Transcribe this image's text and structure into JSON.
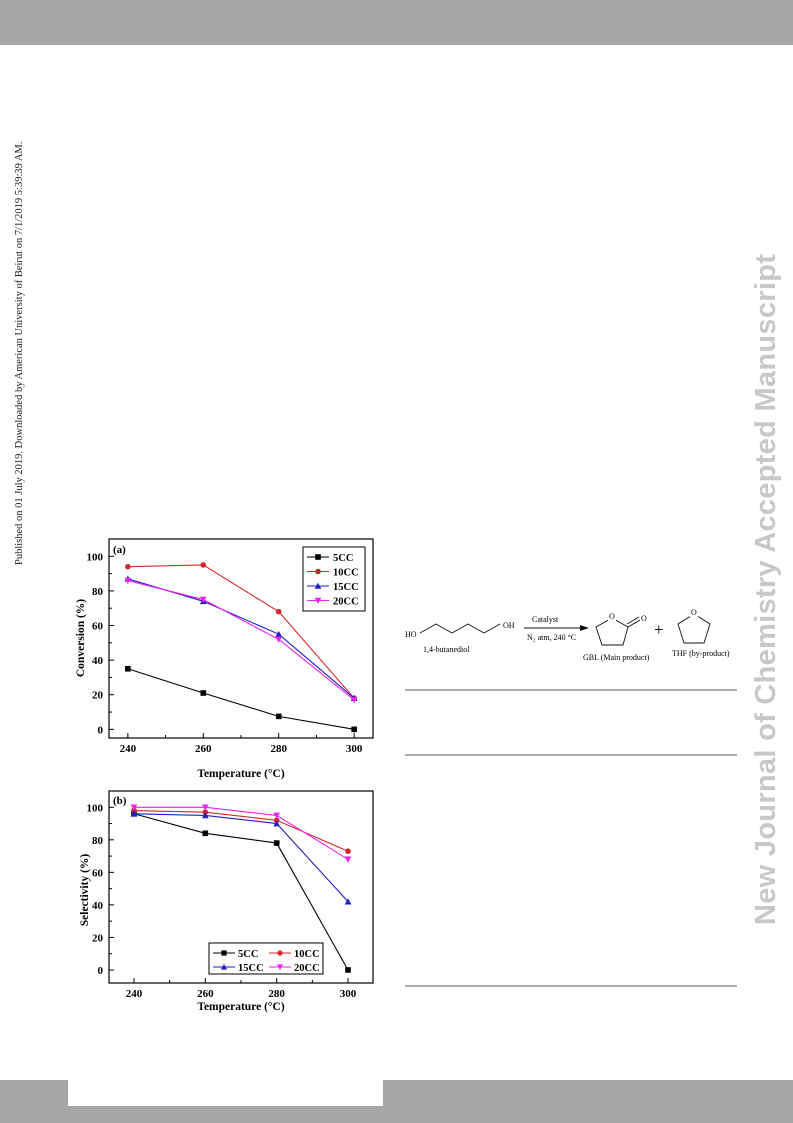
{
  "page": {
    "side_note": "Published on 01 July 2019. Downloaded by American University of Beirut on 7/1/2019 5:39:39 AM.",
    "watermark": "New Journal of Chemistry Accepted Manuscript",
    "colors": {
      "bars": "#a6a6a6",
      "watermark": "#c8c8c8"
    }
  },
  "scheme": {
    "reactant": "1,4-butanediol",
    "ho_label": "HO",
    "oh_label": "OH",
    "catalyst": "Catalyst",
    "conditions": "N₂ atm, 240 °C",
    "plus": "+",
    "product_main": "GBL (Main product)",
    "product_by": "THF (by-product)",
    "o_label": "O"
  },
  "chart_data": [
    {
      "type": "line",
      "panel": "(a)",
      "xlabel": "Temperature (°C)",
      "ylabel": "Conversion (%)",
      "x": [
        240,
        260,
        280,
        300
      ],
      "xlim": [
        235,
        305
      ],
      "ylim": [
        -5,
        110
      ],
      "yticks": [
        0,
        20,
        40,
        60,
        80,
        100
      ],
      "legend_position": "top-right",
      "series": [
        {
          "name": "5CC",
          "color": "#000000",
          "marker": "square",
          "values": [
            35,
            21,
            7.5,
            0
          ]
        },
        {
          "name": "10CC",
          "color": "#d62728",
          "marker": "circle",
          "values": [
            94,
            95,
            68,
            18
          ]
        },
        {
          "name": "15CC",
          "color": "#2020c0",
          "marker": "triangle-up",
          "values": [
            87,
            74,
            55,
            18
          ]
        },
        {
          "name": "20CC",
          "color": "#ee22ee",
          "marker": "triangle-down",
          "values": [
            86,
            75,
            52,
            17
          ]
        }
      ]
    },
    {
      "type": "line",
      "panel": "(b)",
      "xlabel": "Temperature (°C)",
      "ylabel": "Selectivity (%)",
      "x": [
        240,
        260,
        280,
        300
      ],
      "xlim": [
        233,
        307
      ],
      "ylim": [
        -8,
        110
      ],
      "yticks": [
        0,
        20,
        40,
        60,
        80,
        100
      ],
      "legend_position": "bottom-right",
      "series": [
        {
          "name": "5CC",
          "color": "#000000",
          "marker": "square",
          "values": [
            96,
            84,
            78,
            0
          ]
        },
        {
          "name": "10CC",
          "color": "#d62728",
          "marker": "circle",
          "values": [
            98,
            97,
            92,
            73
          ]
        },
        {
          "name": "15CC",
          "color": "#2020c0",
          "marker": "triangle-up",
          "values": [
            96,
            95,
            90,
            42
          ]
        },
        {
          "name": "20CC",
          "color": "#ee22ee",
          "marker": "triangle-down",
          "values": [
            100,
            100,
            95,
            68
          ]
        }
      ]
    }
  ]
}
